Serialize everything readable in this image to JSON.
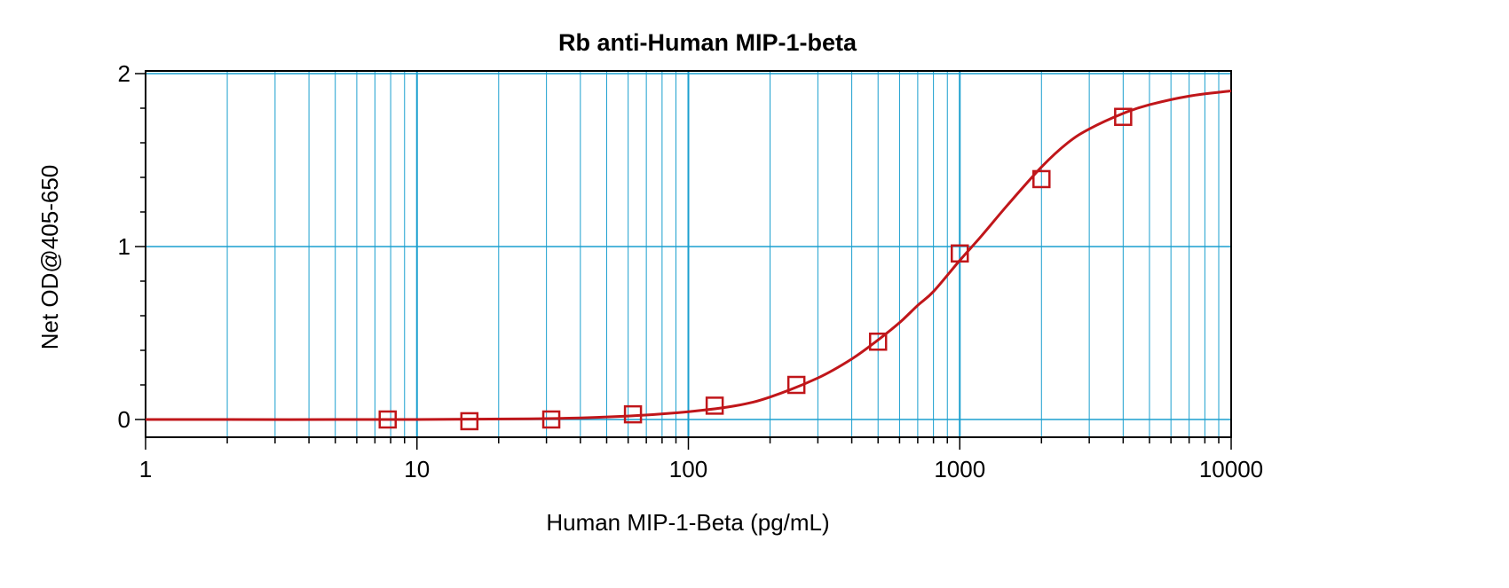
{
  "chart_data": {
    "type": "scatter",
    "title": "Rb anti-Human MIP-1-beta",
    "xlabel": "Human MIP-1-Beta (pg/mL)",
    "ylabel": "Net OD@405-650",
    "x_scale": "log",
    "xlim": [
      1,
      10000
    ],
    "ylim": [
      -0.1,
      2
    ],
    "x_ticks": [
      1,
      10,
      100,
      1000,
      10000
    ],
    "x_tick_labels": [
      "1",
      "10",
      "100",
      "1000",
      "10000"
    ],
    "y_ticks": [
      0,
      1,
      2
    ],
    "y_tick_labels": [
      "0",
      "1",
      "2"
    ],
    "grid": true,
    "legend": "none",
    "series": [
      {
        "marker": "square",
        "x": [
          7.8,
          15.6,
          31.25,
          62.5,
          125,
          250,
          500,
          1000,
          2000,
          4000
        ],
        "y": [
          0.0,
          -0.01,
          0.0,
          0.03,
          0.08,
          0.2,
          0.45,
          0.96,
          1.39,
          1.75
        ]
      }
    ],
    "fit_curve": {
      "x": [
        1,
        10,
        30,
        60,
        100,
        150,
        200,
        300,
        400,
        500,
        600,
        700,
        800,
        1000,
        1200,
        1500,
        2000,
        2500,
        3000,
        4000,
        5000,
        7000,
        10000
      ],
      "y": [
        0.0,
        0.0,
        0.005,
        0.02,
        0.045,
        0.08,
        0.13,
        0.24,
        0.35,
        0.46,
        0.56,
        0.66,
        0.74,
        0.92,
        1.06,
        1.24,
        1.46,
        1.6,
        1.68,
        1.77,
        1.82,
        1.87,
        1.9
      ]
    },
    "colors": {
      "grid": "#1a9fcf",
      "marker": "#c0161a",
      "curve": "#c0161a",
      "axis": "#000000"
    }
  }
}
